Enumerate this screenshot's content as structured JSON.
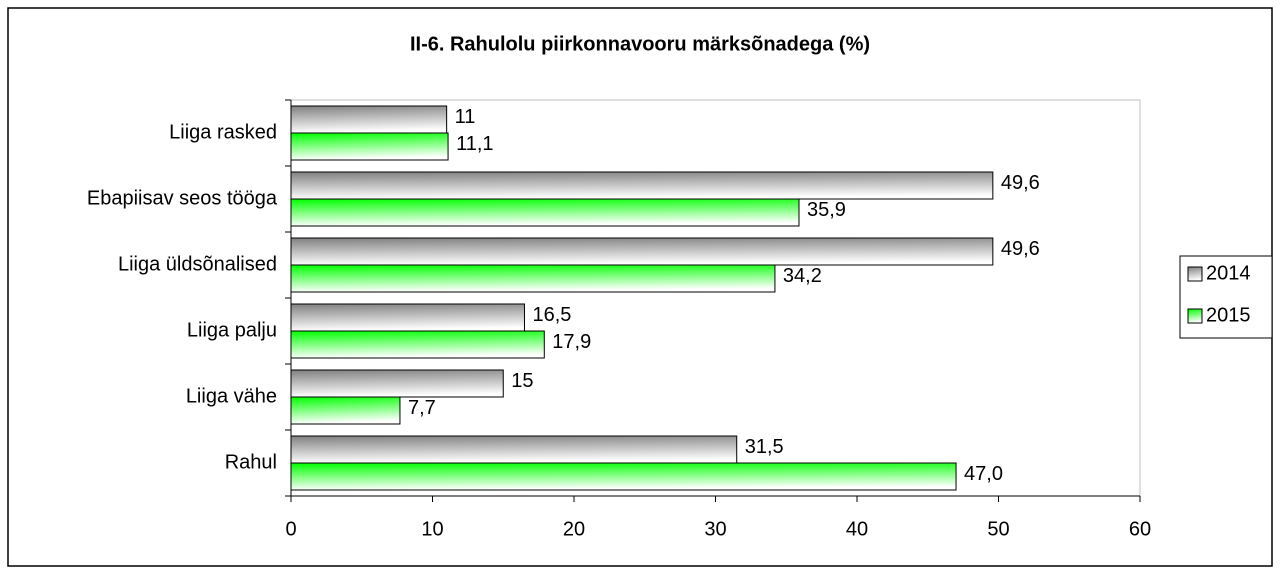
{
  "chart_data": {
    "type": "hbar",
    "title": "II-6. Rahulolu piirkonnavooru märksõnadega (%)",
    "categories": [
      "Liiga rasked",
      "Ebapiisav seos tööga",
      "Liiga üldsõnalised",
      "Liiga palju",
      "Liiga vähe",
      "Rahul"
    ],
    "series": [
      {
        "name": "2014",
        "color": "#808080",
        "values": [
          11,
          49.6,
          49.6,
          16.5,
          15,
          31.5
        ],
        "value_labels": [
          "11",
          "49,6",
          "49,6",
          "16,5",
          "15",
          "31,5"
        ]
      },
      {
        "name": "2015",
        "color": "#00ff00",
        "values": [
          11.1,
          35.9,
          34.2,
          17.9,
          7.7,
          47.0
        ],
        "value_labels": [
          "11,1",
          "35,9",
          "34,2",
          "17,9",
          "7,7",
          "47,0"
        ]
      }
    ],
    "xlim": [
      0,
      60
    ],
    "xticks": [
      0,
      10,
      20,
      30,
      40,
      50,
      60
    ],
    "grid": false,
    "legend": "right"
  }
}
